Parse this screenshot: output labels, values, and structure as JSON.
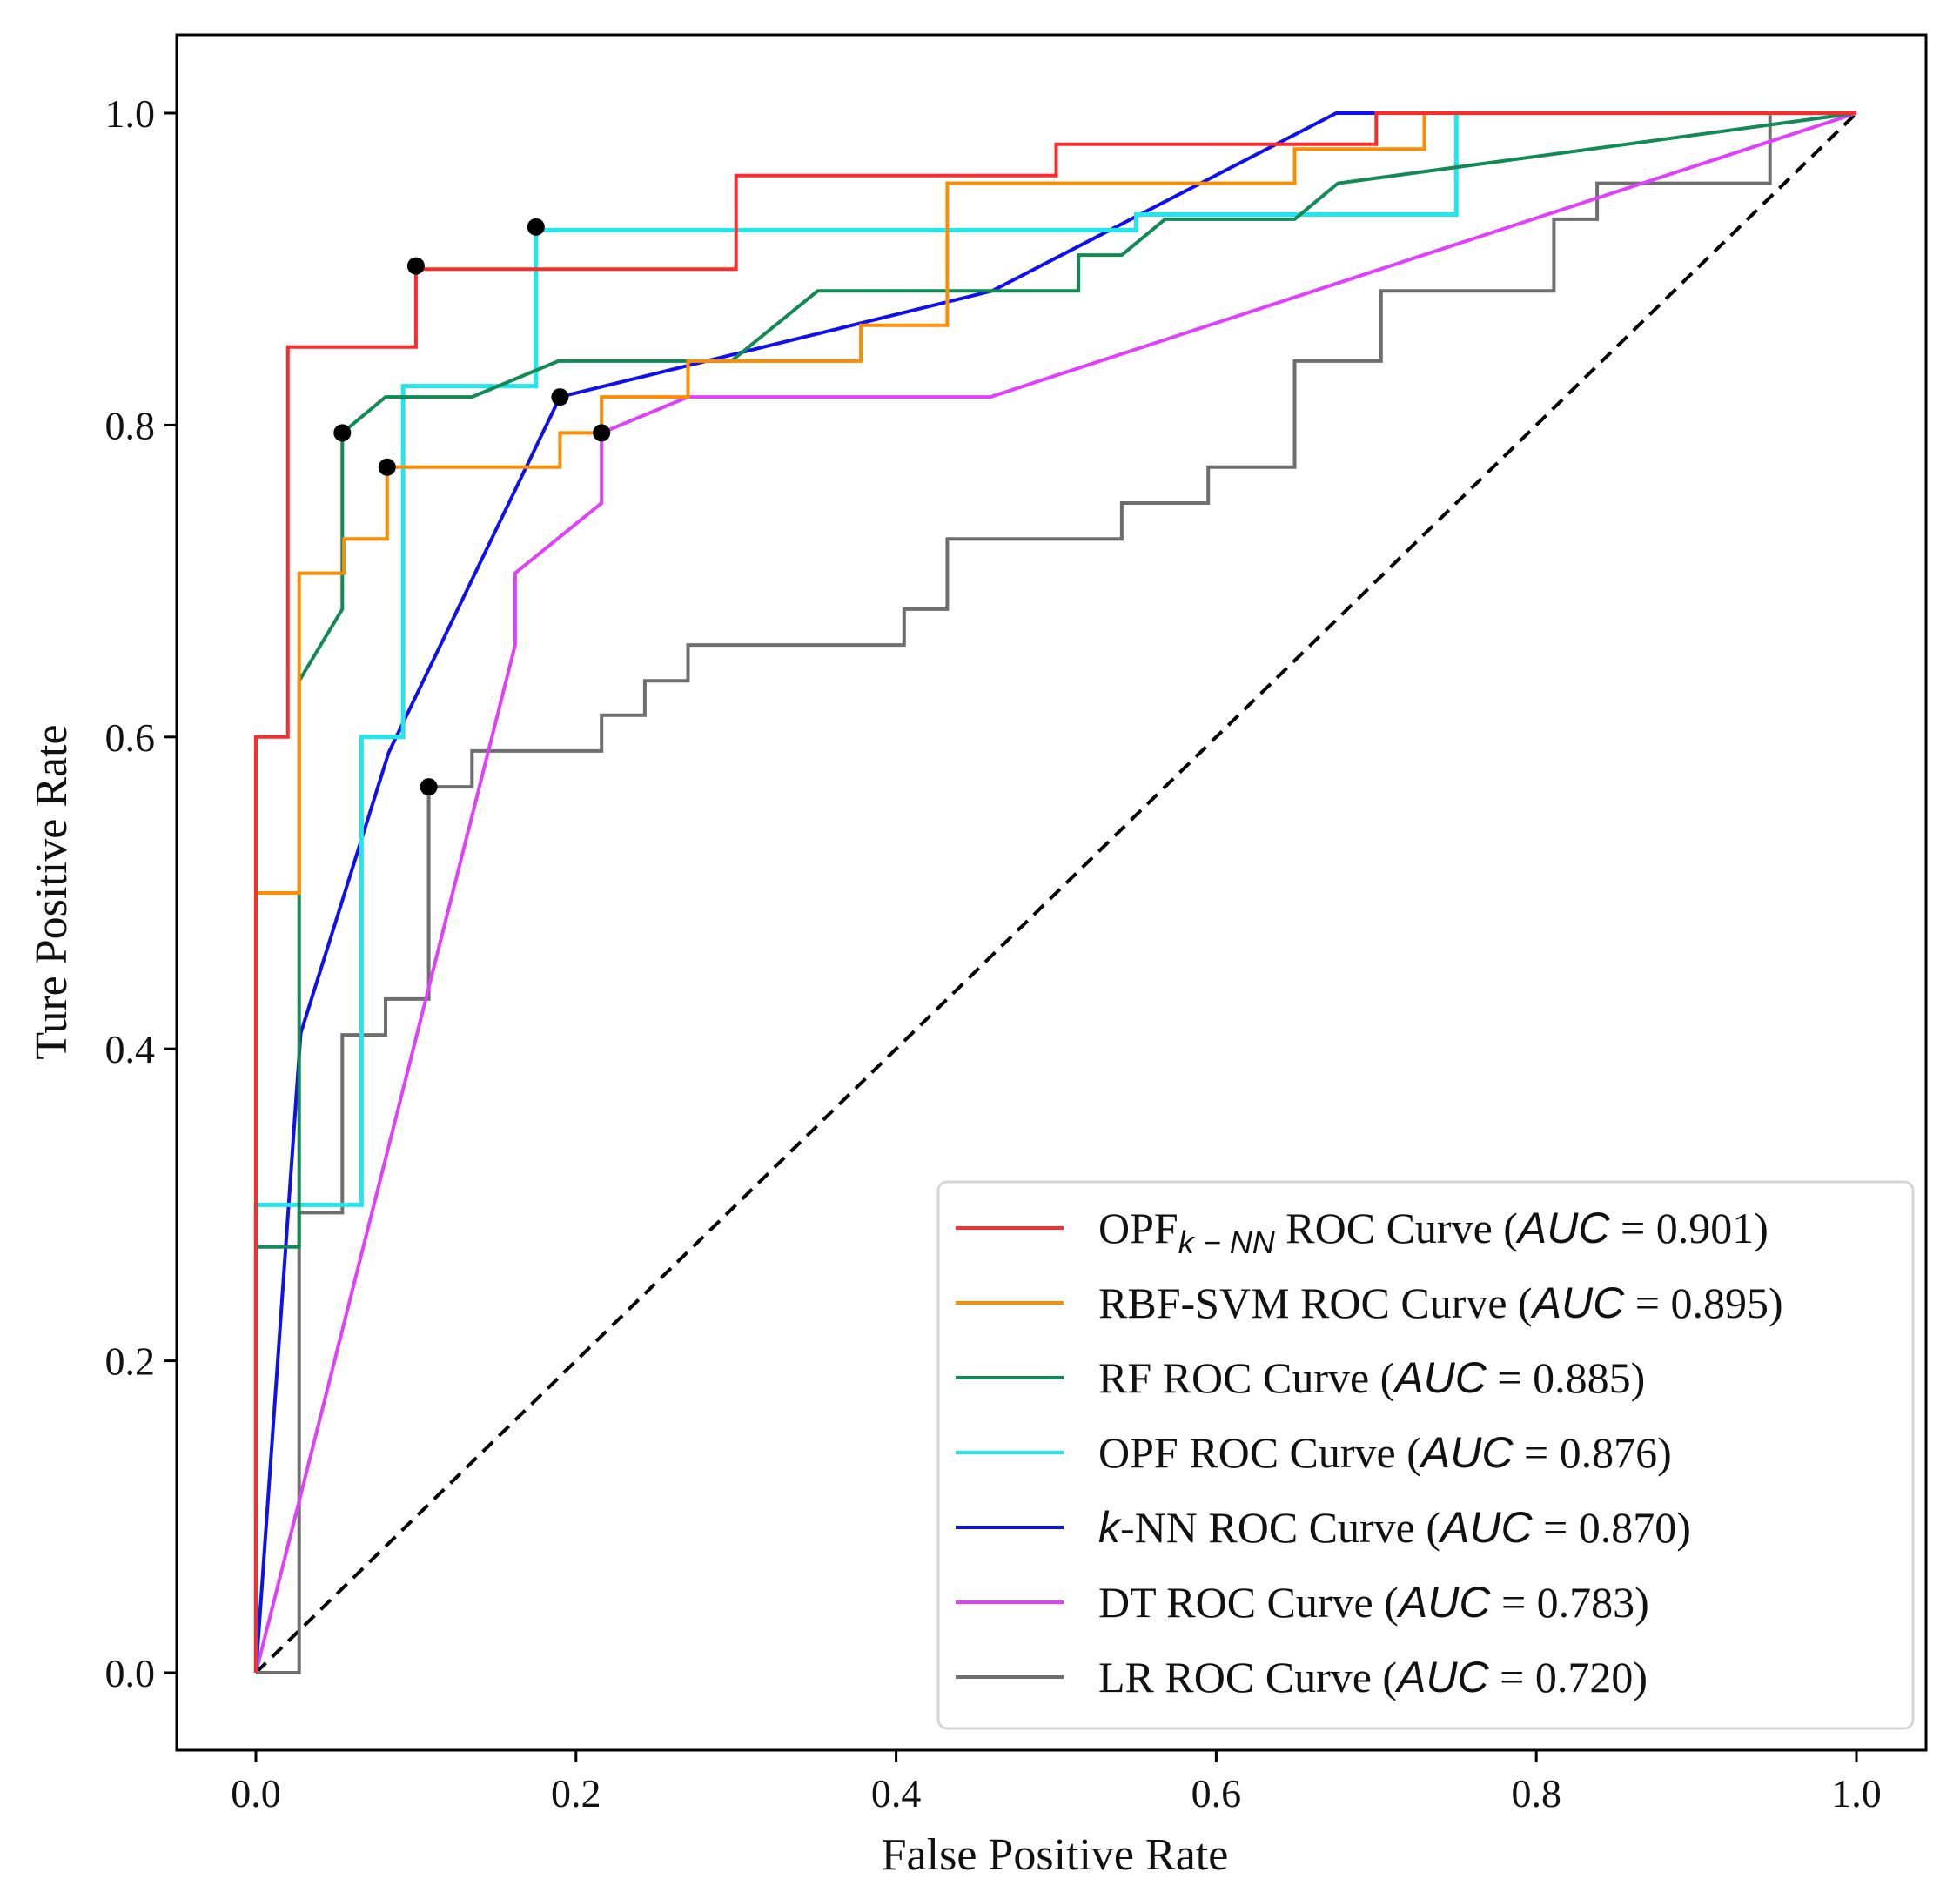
{
  "chart_data": {
    "type": "line",
    "title": "",
    "xlabel": "False Positive Rate",
    "ylabel": "Ture Positive Rate",
    "xlim": [
      -0.05,
      1.05
    ],
    "ylim": [
      -0.05,
      1.05
    ],
    "xticks": [
      0.0,
      0.2,
      0.4,
      0.6,
      0.8,
      1.0
    ],
    "yticks": [
      0.0,
      0.2,
      0.4,
      0.6,
      0.8,
      1.0
    ],
    "xtick_labels": [
      "0.0",
      "0.2",
      "0.4",
      "0.6",
      "0.8",
      "1.0"
    ],
    "ytick_labels": [
      "0.0",
      "0.2",
      "0.4",
      "0.6",
      "0.8",
      "1.0"
    ],
    "legend_position": "bottom-right",
    "diagonal": {
      "name": "chance",
      "x": [
        0,
        1
      ],
      "y": [
        0,
        1
      ],
      "color": "#000000",
      "style": "dashed"
    },
    "series": [
      {
        "name": "OPF_{k-NN}",
        "legend_prefix": "OPF",
        "legend_subscript": "k − NN",
        "legend_mid": " ROC Curve (",
        "legend_auc_label": "AUC",
        "legend_suffix": " = 0.901)",
        "auc": 0.901,
        "color": "#ff2a2a",
        "x": [
          0,
          0,
          0.02,
          0.02,
          0.1,
          0.1,
          0.3,
          0.3,
          0.5,
          0.5,
          0.7,
          0.7,
          1.0
        ],
        "y": [
          0,
          0.6,
          0.6,
          0.85,
          0.85,
          0.9,
          0.9,
          0.96,
          0.96,
          0.98,
          0.98,
          1.0,
          1.0
        ],
        "optimal_point": [
          0.1,
          0.902
        ]
      },
      {
        "name": "RBF-SVM",
        "legend_prefix": "RBF-SVM",
        "legend_subscript": "",
        "legend_mid": " ROC Curve (",
        "legend_auc_label": "AUC",
        "legend_suffix": " = 0.895)",
        "auc": 0.895,
        "color": "#ff8c00",
        "x": [
          0,
          0,
          0.027,
          0.027,
          0.055,
          0.055,
          0.082,
          0.082,
          0.19,
          0.19,
          0.216,
          0.216,
          0.27,
          0.27,
          0.378,
          0.378,
          0.432,
          0.432,
          0.649,
          0.649,
          0.73,
          0.73,
          1.0
        ],
        "y": [
          0,
          0.5,
          0.5,
          0.705,
          0.705,
          0.727,
          0.727,
          0.773,
          0.773,
          0.795,
          0.795,
          0.818,
          0.818,
          0.841,
          0.841,
          0.864,
          0.864,
          0.955,
          0.955,
          0.977,
          0.977,
          1.0,
          1.0
        ],
        "optimal_point": [
          0.082,
          0.773
        ]
      },
      {
        "name": "RF",
        "legend_prefix": "RF",
        "legend_subscript": "",
        "legend_mid": " ROC Curve (",
        "legend_auc_label": "AUC",
        "legend_suffix": " = 0.885)",
        "auc": 0.885,
        "color": "#118a55",
        "x": [
          0,
          0,
          0.027,
          0.027,
          0.054,
          0.054,
          0.081,
          0.135,
          0.189,
          0.297,
          0.351,
          0.514,
          0.514,
          0.541,
          0.568,
          0.595,
          0.649,
          0.676,
          1.0
        ],
        "y": [
          0,
          0.273,
          0.273,
          0.636,
          0.682,
          0.795,
          0.818,
          0.818,
          0.841,
          0.841,
          0.886,
          0.886,
          0.909,
          0.909,
          0.932,
          0.932,
          0.932,
          0.955,
          1.0
        ],
        "optimal_point": [
          0.054,
          0.795
        ]
      },
      {
        "name": "OPF",
        "legend_prefix": "OPF",
        "legend_subscript": "",
        "legend_mid": " ROC Curve (",
        "legend_auc_label": "AUC",
        "legend_suffix": " = 0.876)",
        "auc": 0.876,
        "color": "#22e6ee",
        "x": [
          0,
          0,
          0.066,
          0.066,
          0.092,
          0.092,
          0.175,
          0.175,
          0.55,
          0.55,
          0.75,
          0.75,
          1.0
        ],
        "y": [
          0,
          0.3,
          0.3,
          0.6,
          0.6,
          0.825,
          0.825,
          0.925,
          0.925,
          0.935,
          0.935,
          1.0,
          1.0
        ],
        "optimal_point": [
          0.175,
          0.927
        ]
      },
      {
        "name": "k-NN",
        "legend_prefix": "",
        "legend_subscript": "",
        "legend_k": "k",
        "legend_mid": "-NN ROC Curve (",
        "legend_auc_label": "AUC",
        "legend_suffix": " = 0.870)",
        "auc": 0.87,
        "color": "#1010ee",
        "x": [
          0,
          0.028,
          0.083,
          0.19,
          0.46,
          0.675,
          1.0
        ],
        "y": [
          0,
          0.41,
          0.59,
          0.818,
          0.886,
          1.0,
          1.0
        ],
        "optimal_point": [
          0.19,
          0.818
        ]
      },
      {
        "name": "DT",
        "legend_prefix": "DT",
        "legend_subscript": "",
        "legend_mid": " ROC Curve (",
        "legend_auc_label": "AUC",
        "legend_suffix": " = 0.783)",
        "auc": 0.783,
        "color": "#e040fb",
        "x": [
          0,
          0.162,
          0.162,
          0.216,
          0.216,
          0.27,
          0.459,
          1.0
        ],
        "y": [
          0,
          0.659,
          0.705,
          0.75,
          0.795,
          0.818,
          0.818,
          1.0
        ],
        "optimal_point": [
          0.216,
          0.795
        ]
      },
      {
        "name": "LR",
        "legend_prefix": "LR",
        "legend_subscript": "",
        "legend_mid": " ROC Curve (",
        "legend_auc_label": "AUC",
        "legend_suffix": " = 0.720)",
        "auc": 0.72,
        "color": "#6e6e6e",
        "x": [
          0,
          0.027,
          0.027,
          0.054,
          0.054,
          0.081,
          0.081,
          0.108,
          0.108,
          0.135,
          0.135,
          0.216,
          0.216,
          0.243,
          0.243,
          0.27,
          0.27,
          0.405,
          0.405,
          0.432,
          0.432,
          0.541,
          0.541,
          0.595,
          0.595,
          0.649,
          0.649,
          0.703,
          0.703,
          0.811,
          0.811,
          0.838,
          0.838,
          0.946,
          0.946,
          1.0
        ],
        "y": [
          0,
          0,
          0.295,
          0.295,
          0.409,
          0.409,
          0.432,
          0.432,
          0.568,
          0.568,
          0.591,
          0.591,
          0.614,
          0.614,
          0.636,
          0.636,
          0.659,
          0.659,
          0.682,
          0.682,
          0.727,
          0.727,
          0.75,
          0.75,
          0.773,
          0.773,
          0.841,
          0.841,
          0.886,
          0.886,
          0.932,
          0.932,
          0.955,
          0.955,
          1.0,
          1.0
        ],
        "optimal_point": [
          0.108,
          0.568
        ]
      }
    ]
  }
}
